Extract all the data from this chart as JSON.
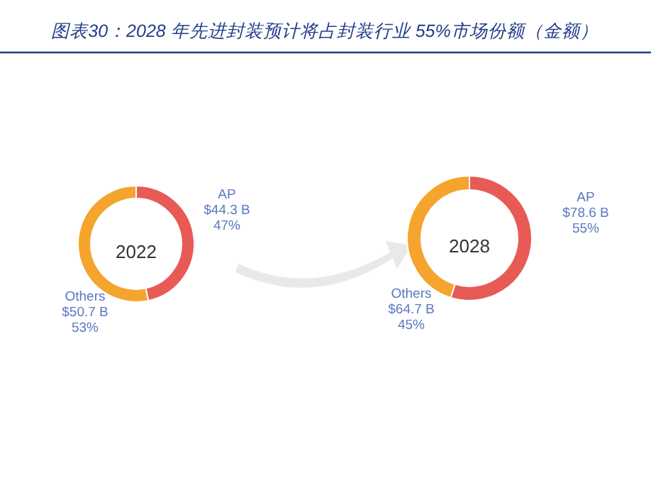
{
  "chart_data": [
    {
      "type": "donut",
      "title": "2022",
      "annotations": [
        "图表30：2028 年先进封装预计将占封装行业 55%市场份额（金额）"
      ],
      "categories": [
        "AP",
        "Others"
      ],
      "values": [
        44.3,
        50.7
      ],
      "colors": [
        "#e85a55",
        "#f5a42e"
      ],
      "value_labels": [
        "$44.3 B\n47%",
        "$50.7 B\n53%"
      ]
    },
    {
      "type": "donut",
      "title": "2028",
      "categories": [
        "AP",
        "Others"
      ],
      "values": [
        78.6,
        64.7
      ],
      "colors": [
        "#e85a55",
        "#f5a42e"
      ],
      "value_labels": [
        "$78.6 B\n55%",
        "$64.7 B\n45%"
      ]
    }
  ]
}
